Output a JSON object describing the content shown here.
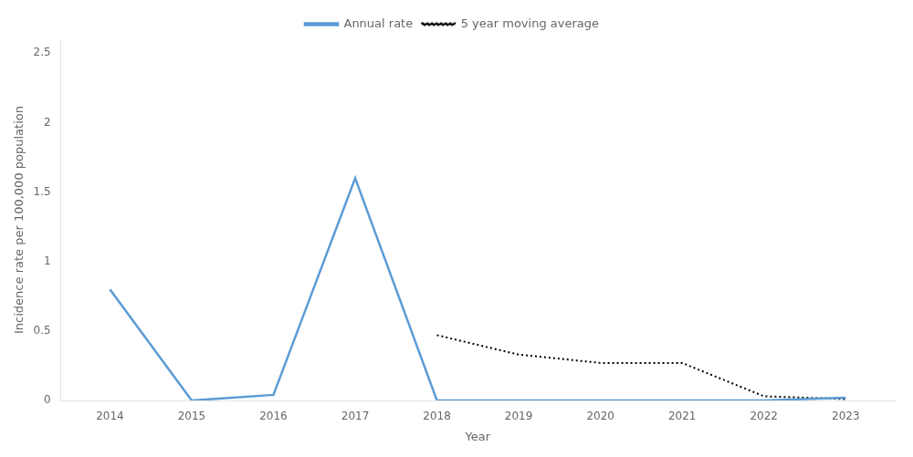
{
  "chart_data": {
    "type": "line",
    "xlabel": "Year",
    "ylabel": "Incidence rate per 100,000 population",
    "series": [
      {
        "name": "Annual rate",
        "color": "#5B9BD5",
        "line_style": "solid",
        "x": [
          2014,
          2015,
          2016,
          2017,
          2018,
          2019,
          2020,
          2021,
          2022,
          2023
        ],
        "values": [
          0.8,
          0.0,
          0.04,
          1.6,
          0.0,
          0.0,
          0.0,
          0.0,
          0.0,
          0.02
        ]
      },
      {
        "name": "5 year moving average",
        "color": "#000000",
        "line_style": "dotted",
        "x": [
          2018,
          2019,
          2020,
          2021,
          2022,
          2023
        ],
        "values": [
          0.47,
          0.33,
          0.27,
          0.27,
          0.03,
          0.01
        ]
      }
    ],
    "xlim": [
      2013.4,
      2023.6
    ],
    "xticks": [
      2014,
      2015,
      2016,
      2017,
      2018,
      2019,
      2020,
      2021,
      2022,
      2023
    ],
    "ylim": [
      0,
      2.6
    ],
    "yticks": [
      0,
      0.5,
      1,
      1.5,
      2,
      2.5
    ],
    "grid": false,
    "legend": "top"
  }
}
